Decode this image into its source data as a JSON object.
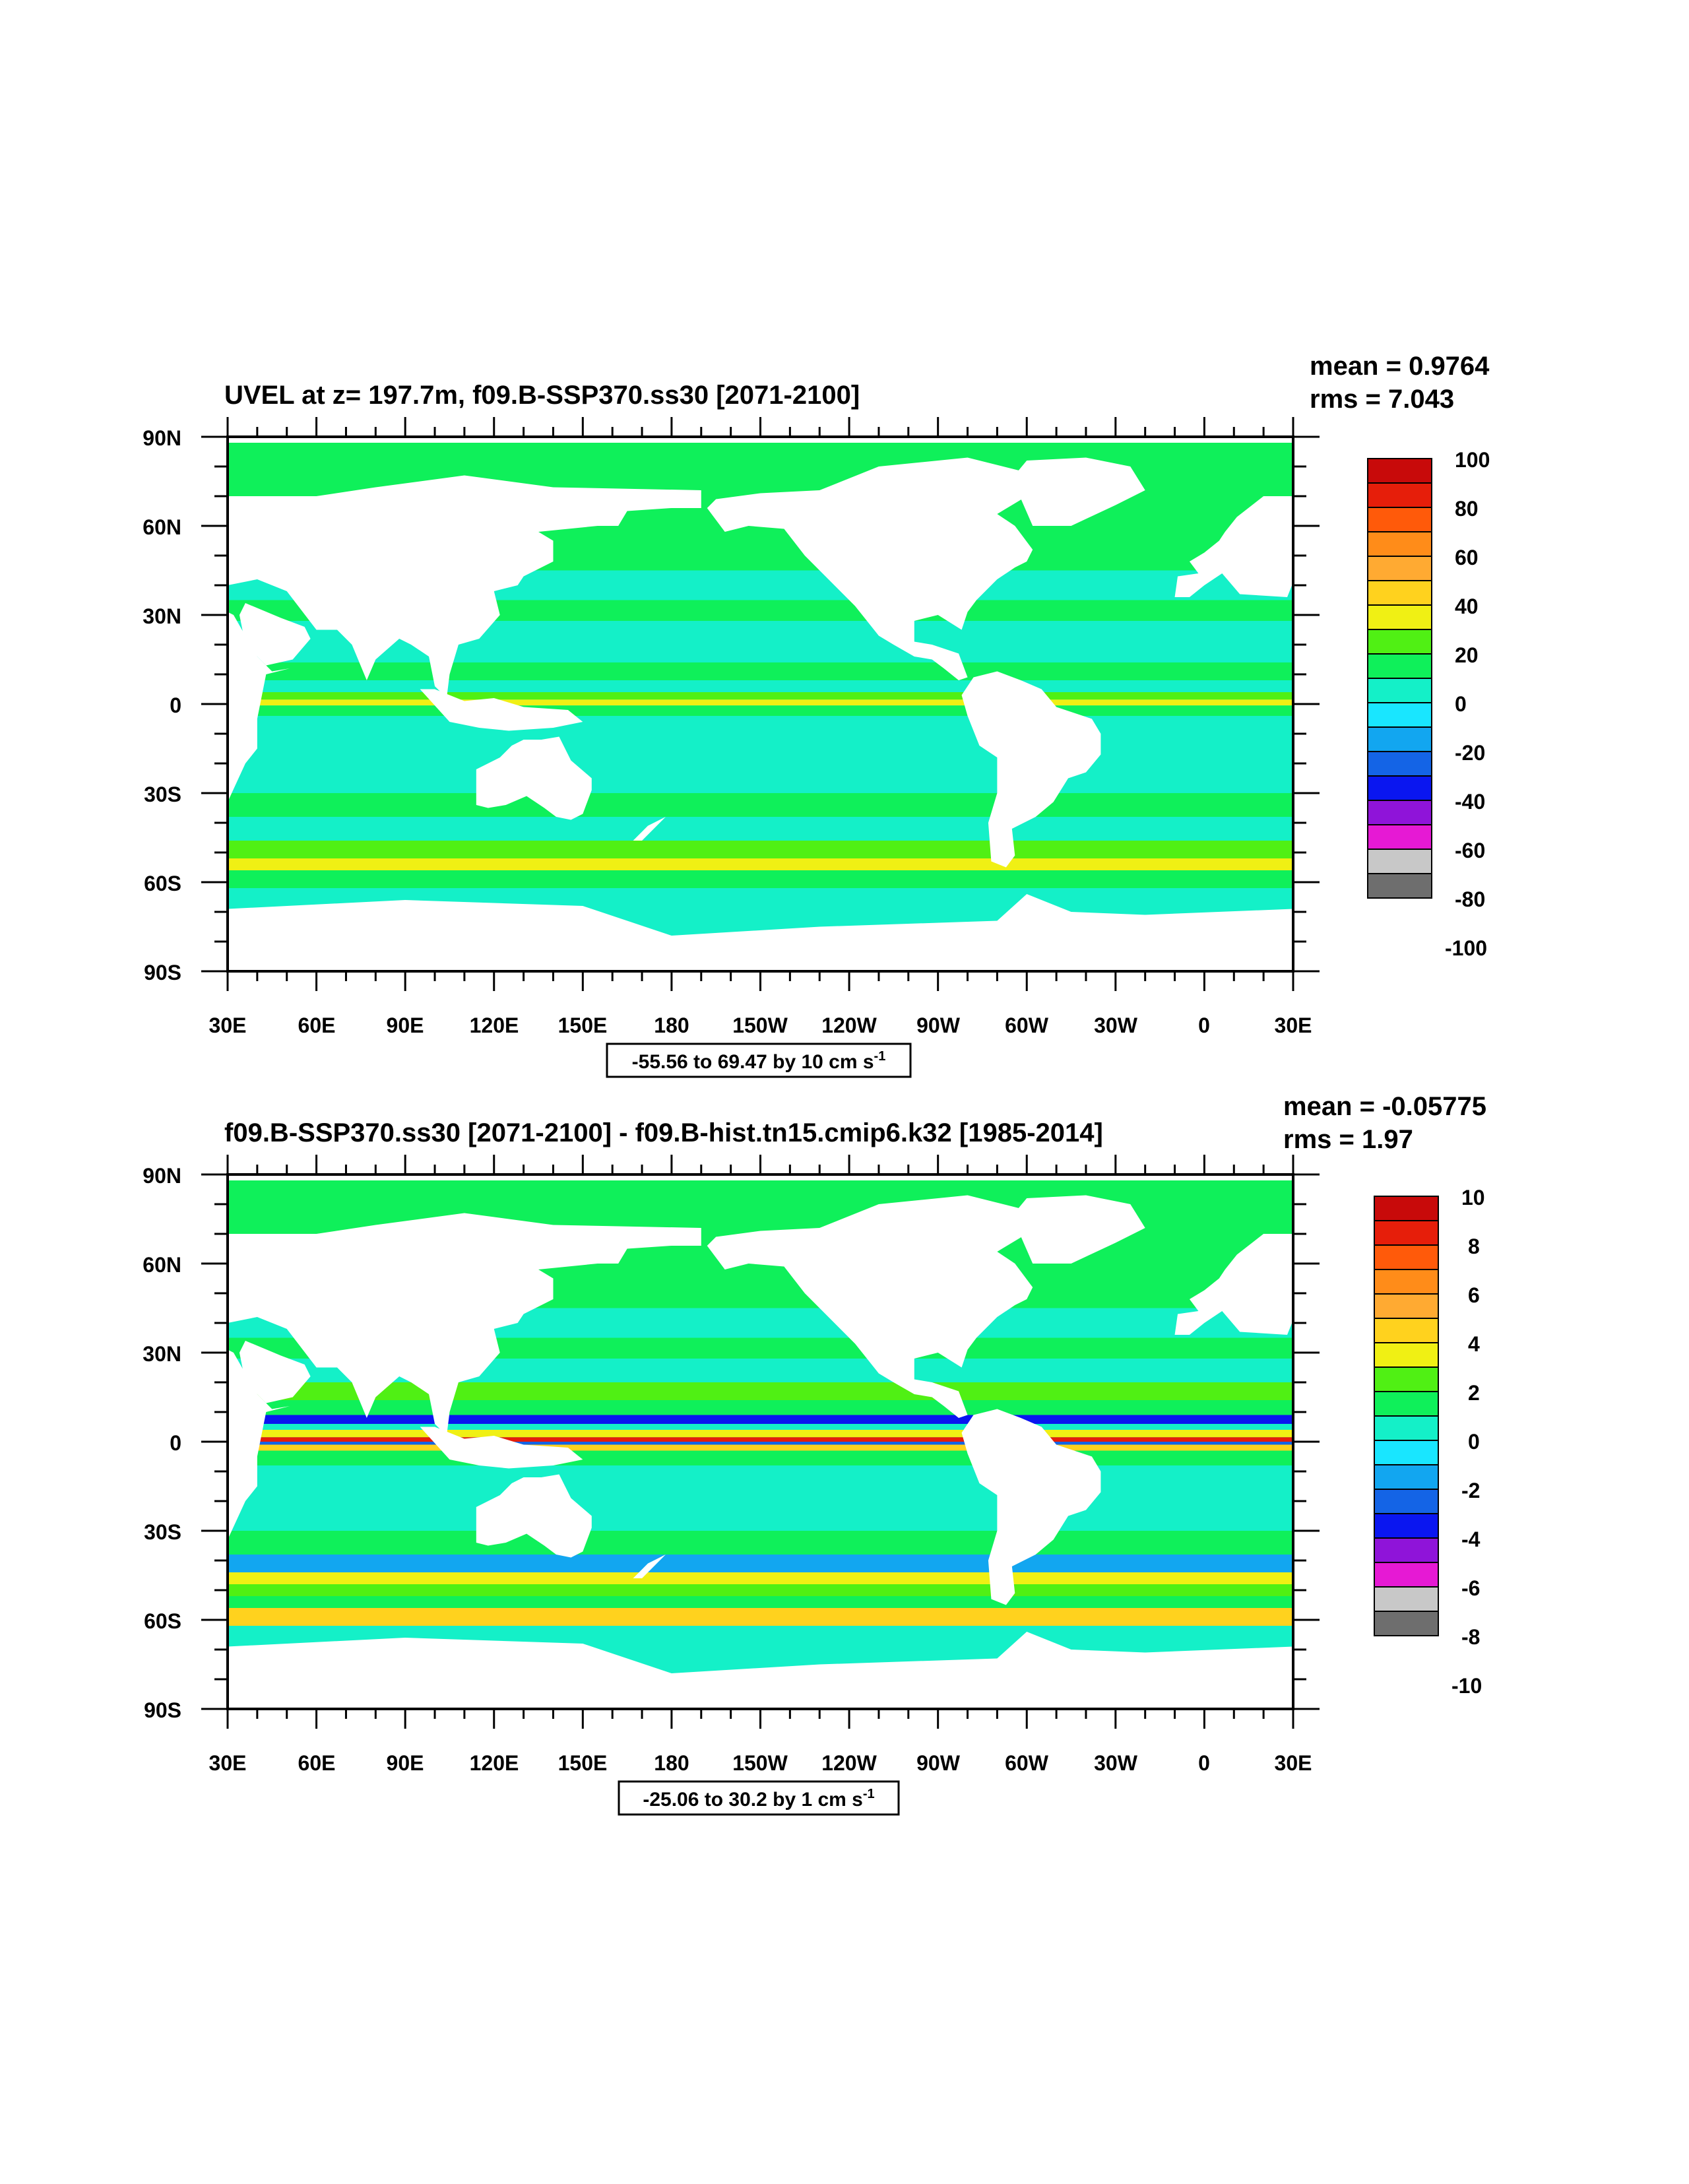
{
  "colors": {
    "land": "#ffffff",
    "frame": "#000000",
    "scale": [
      "#6e6e6e",
      "#c8c8c8",
      "#e619d4",
      "#8f14d9",
      "#0a16f0",
      "#1464e6",
      "#12a6f0",
      "#19e6ff",
      "#14f0c8",
      "#0ff05a",
      "#50f014",
      "#f0f014",
      "#ffd21e",
      "#ffaa32",
      "#ff8c19",
      "#ff5a0a",
      "#e61e0a",
      "#c80a0a"
    ]
  },
  "maps": [
    {
      "title": "UVEL at z= 197.7m, f09.B-SSP370.ss30 [2071-2100]",
      "stats": {
        "mean": "mean = 0.9764",
        "rms": "rms = 7.043"
      },
      "lat_ticks": [
        "90N",
        "60N",
        "30N",
        "0",
        "30S",
        "60S",
        "90S"
      ],
      "lon_ticks": [
        "30E",
        "60E",
        "90E",
        "120E",
        "150E",
        "180",
        "150W",
        "120W",
        "90W",
        "60W",
        "30W",
        "0",
        "30E"
      ],
      "range_label": {
        "main": "-55.56 to 69.47 by 10 cm s",
        "sup": "-1"
      },
      "colorbar_labels": [
        "100",
        "80",
        "60",
        "40",
        "20",
        "0",
        "-20",
        "-40",
        "-60",
        "-80",
        "-100"
      ]
    },
    {
      "title": "f09.B-SSP370.ss30 [2071-2100] - f09.B-hist.tn15.cmip6.k32 [1985-2014]",
      "stats": {
        "mean": "mean = -0.05775",
        "rms": "rms = 1.97"
      },
      "lat_ticks": [
        "90N",
        "60N",
        "30N",
        "0",
        "30S",
        "60S",
        "90S"
      ],
      "lon_ticks": [
        "30E",
        "60E",
        "90E",
        "120E",
        "150E",
        "180",
        "150W",
        "120W",
        "90W",
        "60W",
        "30W",
        "0",
        "30E"
      ],
      "range_label": {
        "main": "-25.06 to 30.2 by 1 cm s",
        "sup": "-1"
      },
      "colorbar_labels": [
        "10",
        "8",
        "6",
        "4",
        "2",
        "0",
        "-2",
        "-4",
        "-6",
        "-8",
        "-10"
      ]
    }
  ]
}
